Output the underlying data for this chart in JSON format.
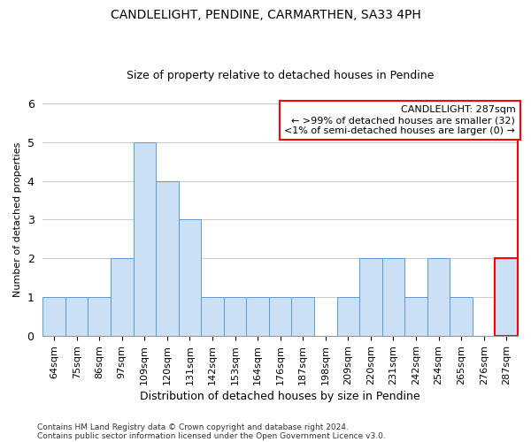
{
  "title": "CANDLELIGHT, PENDINE, CARMARTHEN, SA33 4PH",
  "subtitle": "Size of property relative to detached houses in Pendine",
  "xlabel": "Distribution of detached houses by size in Pendine",
  "ylabel": "Number of detached properties",
  "categories": [
    "64sqm",
    "75sqm",
    "86sqm",
    "97sqm",
    "109sqm",
    "120sqm",
    "131sqm",
    "142sqm",
    "153sqm",
    "164sqm",
    "176sqm",
    "187sqm",
    "198sqm",
    "209sqm",
    "220sqm",
    "231sqm",
    "242sqm",
    "254sqm",
    "265sqm",
    "276sqm",
    "287sqm"
  ],
  "values": [
    1,
    1,
    1,
    2,
    5,
    4,
    3,
    1,
    1,
    1,
    1,
    1,
    0,
    1,
    2,
    2,
    1,
    2,
    1,
    0,
    2
  ],
  "bar_color": "#cce0f5",
  "bar_edge_color": "#5b9bd5",
  "highlight_index": 20,
  "highlight_edge_color": "red",
  "grid_color": "#cccccc",
  "ylim": [
    0,
    6
  ],
  "yticks": [
    0,
    1,
    2,
    3,
    4,
    5,
    6
  ],
  "annotation_title": "CANDLELIGHT: 287sqm",
  "annotation_line1": "← >99% of detached houses are smaller (32)",
  "annotation_line2": "<1% of semi-detached houses are larger (0) →",
  "footer_line1": "Contains HM Land Registry data © Crown copyright and database right 2024.",
  "footer_line2": "Contains public sector information licensed under the Open Government Licence v3.0.",
  "background_color": "#ffffff",
  "title_fontsize": 10,
  "subtitle_fontsize": 9,
  "xlabel_fontsize": 9,
  "ylabel_fontsize": 8,
  "tick_fontsize": 8,
  "annotation_fontsize": 8,
  "footer_fontsize": 6.5
}
